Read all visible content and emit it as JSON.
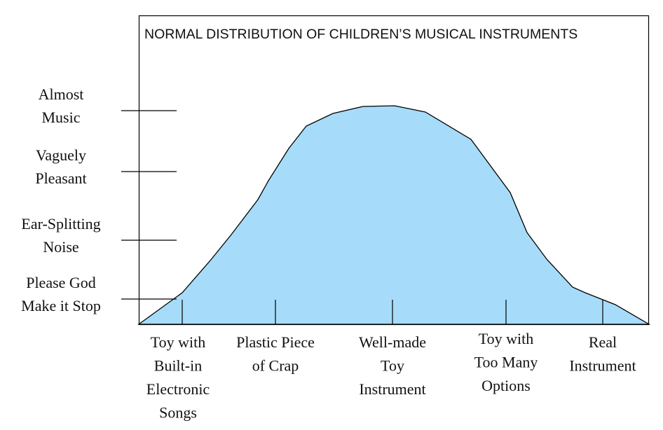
{
  "title": "NORMAL DISTRIBUTION OF CHILDREN’S MUSICAL INSTRUMENTS",
  "y_labels": [
    [
      "Almost",
      "Music"
    ],
    [
      "Vaguely",
      "Pleasant"
    ],
    [
      "Ear-Splitting",
      "Noise"
    ],
    [
      "Please God",
      "Make it Stop"
    ]
  ],
  "x_labels": [
    [
      "Toy with",
      "Built-in",
      "Electronic",
      "Songs"
    ],
    [
      "Plastic Piece",
      "of Crap"
    ],
    [
      "Well-made",
      "Toy",
      "Instrument"
    ],
    [
      "Toy with",
      "Too Many",
      "Options"
    ],
    [
      "Real",
      "Instrument"
    ]
  ]
}
